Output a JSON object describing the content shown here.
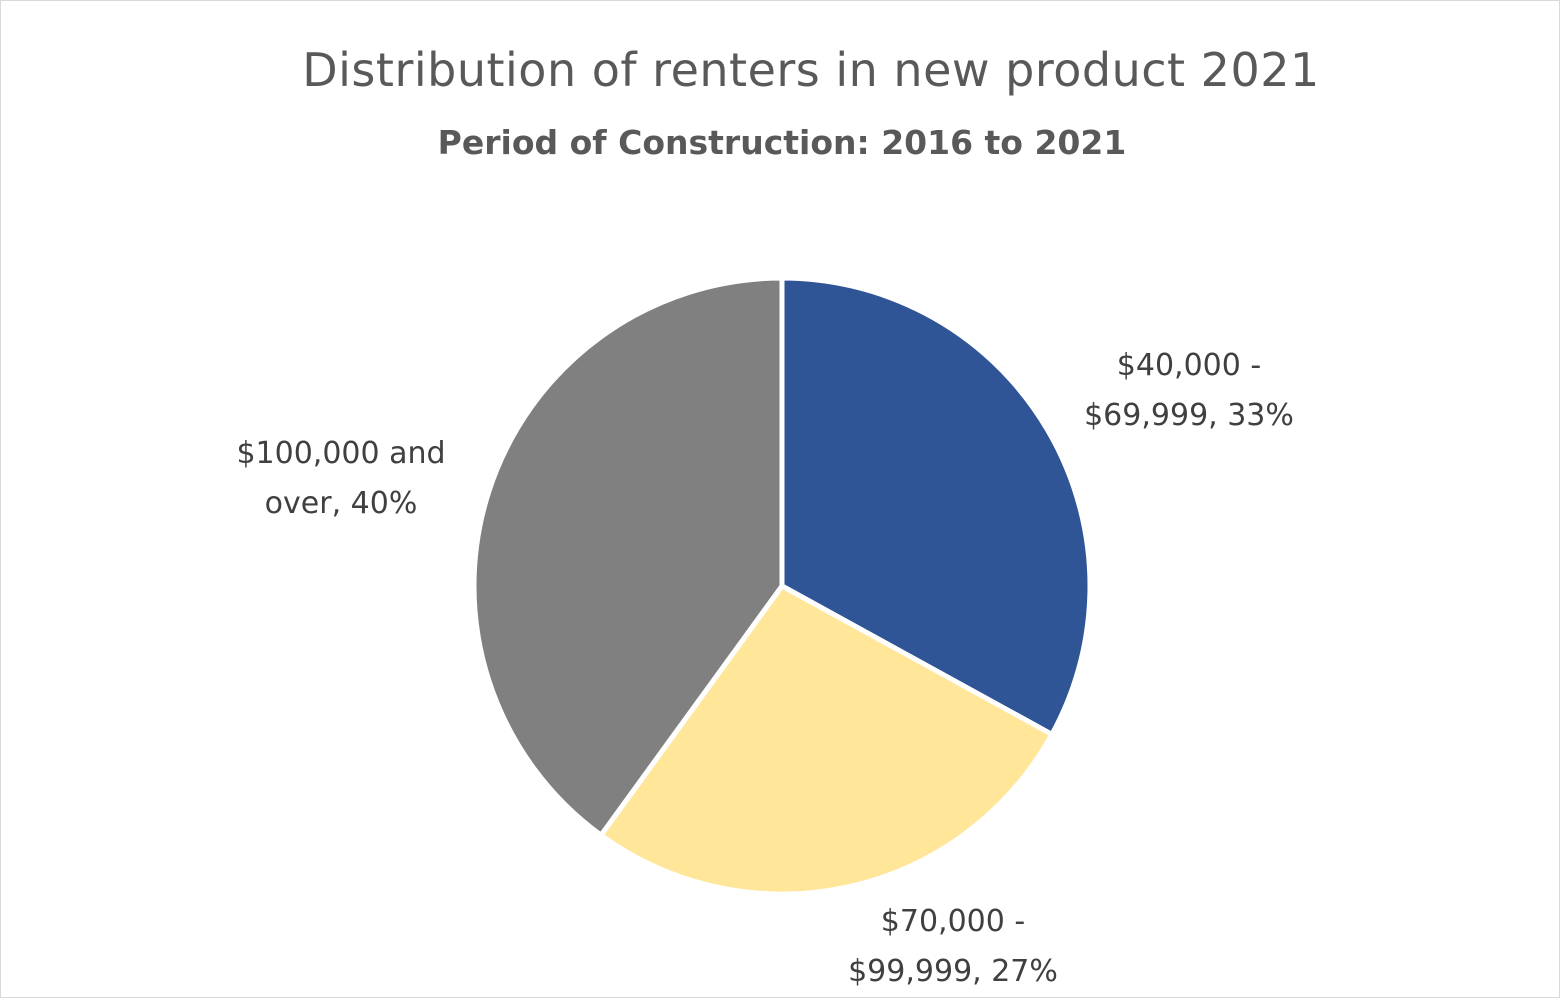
{
  "chart_data": {
    "type": "pie",
    "title": "Distribution of renters in new product 2021",
    "subtitle": "Period of Construction: 2016 to 2021",
    "slices": [
      {
        "label": "$40,000 - $69,999",
        "value": 33,
        "display_lines": [
          "$40,000 -",
          "$69,999, 33%"
        ],
        "color": "#2F5597"
      },
      {
        "label": "$70,000 - $99,999",
        "value": 27,
        "display_lines": [
          "$70,000 -",
          "$99,999, 27%"
        ],
        "color": "#FFE699"
      },
      {
        "label": "$100,000 and over",
        "value": 40,
        "display_lines": [
          "$100,000 and",
          "over, 40%"
        ],
        "color": "#808080"
      }
    ]
  }
}
